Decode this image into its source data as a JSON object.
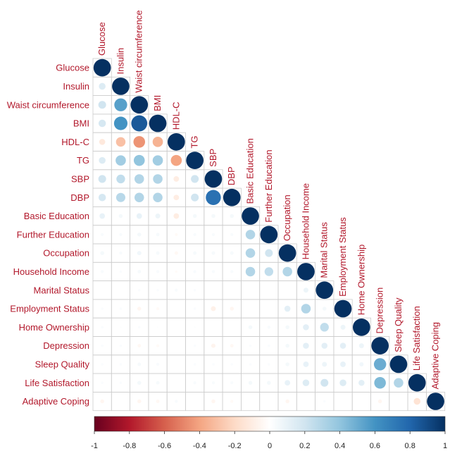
{
  "chart_data": {
    "type": "heatmap",
    "variables": [
      "Glucose",
      "Insulin",
      "Waist circumference",
      "BMI",
      "HDL-C",
      "TG",
      "SBP",
      "DBP",
      "Basic Education",
      "Further Education",
      "Occupation",
      "Household Income",
      "Marital Status",
      "Employment Status",
      "Home Ownership",
      "Depression",
      "Sleep Quality",
      "Life Satisfaction",
      "Adaptive Coping"
    ],
    "matrix": [
      [
        1
      ],
      [
        0.15,
        1
      ],
      [
        0.2,
        0.55,
        1
      ],
      [
        0.18,
        0.6,
        0.85,
        1
      ],
      [
        -0.12,
        -0.3,
        -0.45,
        -0.35,
        1
      ],
      [
        0.15,
        0.35,
        0.4,
        0.35,
        -0.4,
        1
      ],
      [
        0.2,
        0.25,
        0.3,
        0.3,
        -0.1,
        0.2,
        1
      ],
      [
        0.18,
        0.28,
        0.3,
        0.3,
        -0.1,
        0.2,
        0.75,
        1
      ],
      [
        0.1,
        0.05,
        0.1,
        0.08,
        -0.1,
        0.05,
        0.05,
        0.05,
        1
      ],
      [
        0.03,
        0.03,
        0.05,
        0.04,
        -0.03,
        0.03,
        0.03,
        0.03,
        0.3,
        1
      ],
      [
        0.05,
        0.03,
        0.06,
        0.04,
        -0.04,
        0.04,
        0.04,
        0.04,
        0.3,
        0.2,
        1
      ],
      [
        0.03,
        0.02,
        0.04,
        0.03,
        -0.02,
        0.03,
        0.03,
        0.03,
        0.3,
        0.25,
        0.3,
        1
      ],
      [
        0,
        0,
        0.02,
        0.02,
        0.03,
        0.02,
        0,
        0,
        0,
        0,
        0,
        0.08,
        1
      ],
      [
        0.02,
        0.02,
        -0.05,
        -0.03,
        0,
        0.02,
        -0.08,
        -0.05,
        0,
        0,
        0.12,
        0.3,
        0.05,
        1
      ],
      [
        0.02,
        0.01,
        0.02,
        0.01,
        0,
        0.01,
        0,
        0,
        0.05,
        0.03,
        0.05,
        0.12,
        0.25,
        0.08,
        1
      ],
      [
        0.02,
        0.02,
        -0.04,
        -0.03,
        0,
        0.02,
        -0.06,
        -0.04,
        0.02,
        0.02,
        0.05,
        0.12,
        0.12,
        0.12,
        0.08,
        1
      ],
      [
        0.02,
        0.02,
        0.04,
        0.03,
        0,
        0.02,
        0.02,
        0.02,
        0.02,
        0.02,
        0.05,
        0.1,
        0.08,
        0.1,
        0.06,
        0.5,
        1
      ],
      [
        0.02,
        0.02,
        0.05,
        0.04,
        0,
        0.03,
        0.03,
        0.03,
        0.05,
        0.05,
        0.1,
        0.15,
        0.2,
        0.15,
        0.12,
        0.45,
        0.3,
        1
      ],
      [
        -0.05,
        0,
        -0.05,
        -0.04,
        0.03,
        0,
        -0.05,
        -0.03,
        0,
        0,
        -0.05,
        0,
        0.02,
        0,
        0,
        -0.05,
        0,
        -0.15,
        1
      ]
    ],
    "colorbar_ticks": [
      "-1",
      "-0.8",
      "-0.6",
      "-0.4",
      "-0.2",
      "0",
      "0.2",
      "0.4",
      "0.6",
      "0.8",
      "1"
    ],
    "value_range": [
      -1,
      1
    ],
    "colors": {
      "neg": "#67001F",
      "mid": "#FFFFFF",
      "pos": "#053061",
      "label": "#B2182B",
      "grid": "#CCCCCC"
    }
  }
}
